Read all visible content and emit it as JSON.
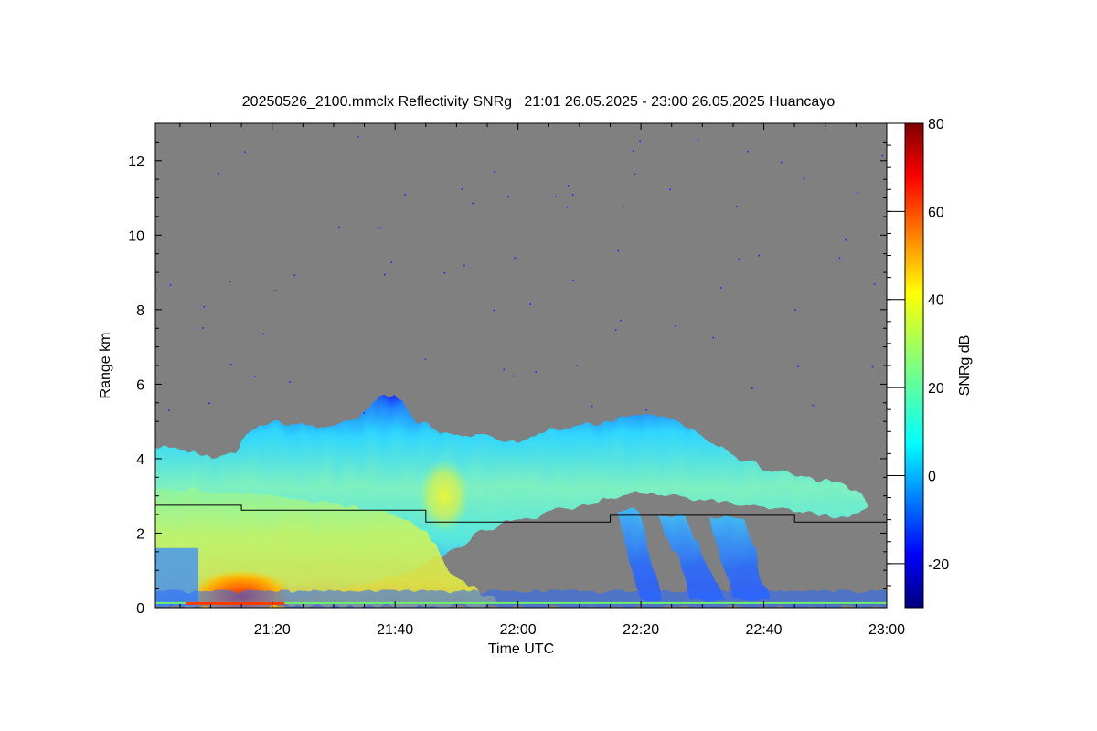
{
  "chart_data": {
    "type": "heatmap",
    "title": "20250526_2100.mmclx Reflectivity SNRg   21:01 26.05.2025 - 23:00 26.05.2025 Huancayo",
    "xlabel": "Time UTC",
    "ylabel": "Range km",
    "xlim_minutes_utc": [
      1261,
      1380
    ],
    "ylim": [
      0,
      13
    ],
    "x_ticks": [
      {
        "value": 1280,
        "label": "21:20"
      },
      {
        "value": 1300,
        "label": "21:40"
      },
      {
        "value": 1320,
        "label": "22:00"
      },
      {
        "value": 1340,
        "label": "22:20"
      },
      {
        "value": 1360,
        "label": "22:40"
      },
      {
        "value": 1380,
        "label": "23:00"
      }
    ],
    "y_ticks": [
      {
        "value": 0,
        "label": "0"
      },
      {
        "value": 2,
        "label": "2"
      },
      {
        "value": 4,
        "label": "4"
      },
      {
        "value": 6,
        "label": "6"
      },
      {
        "value": 8,
        "label": "8"
      },
      {
        "value": 10,
        "label": "10"
      },
      {
        "value": 12,
        "label": "12"
      }
    ],
    "colorbar": {
      "label": "SNRg dB",
      "range": [
        -30,
        80
      ],
      "colormap": "jet",
      "ticks": [
        {
          "value": -20,
          "label": "-20"
        },
        {
          "value": 0,
          "label": "0"
        },
        {
          "value": 20,
          "label": "20"
        },
        {
          "value": 40,
          "label": "40"
        },
        {
          "value": 60,
          "label": "60"
        },
        {
          "value": 80,
          "label": "80"
        }
      ]
    },
    "background_color": "#808080",
    "cloud_layer": {
      "top_km": [
        [
          1261,
          4.3
        ],
        [
          1267,
          4.2
        ],
        [
          1270,
          4.0
        ],
        [
          1274,
          4.2
        ],
        [
          1276,
          4.7
        ],
        [
          1279,
          4.9
        ],
        [
          1284,
          5.0
        ],
        [
          1288,
          4.9
        ],
        [
          1294,
          5.1
        ],
        [
          1297,
          5.6
        ],
        [
          1300,
          5.8
        ],
        [
          1302,
          5.3
        ],
        [
          1306,
          4.8
        ],
        [
          1310,
          4.6
        ],
        [
          1315,
          4.6
        ],
        [
          1320,
          4.5
        ],
        [
          1325,
          4.7
        ],
        [
          1330,
          4.9
        ],
        [
          1334,
          5.0
        ],
        [
          1337,
          5.1
        ],
        [
          1340,
          5.2
        ],
        [
          1344,
          5.1
        ],
        [
          1348,
          4.8
        ],
        [
          1352,
          4.4
        ],
        [
          1356,
          4.0
        ],
        [
          1360,
          3.7
        ],
        [
          1365,
          3.5
        ],
        [
          1370,
          3.4
        ],
        [
          1374,
          3.3
        ],
        [
          1376,
          3.0
        ],
        [
          1377,
          2.7
        ]
      ],
      "base_km": [
        [
          1261,
          0.1
        ],
        [
          1280,
          0.1
        ],
        [
          1300,
          0.8
        ],
        [
          1310,
          1.6
        ],
        [
          1314,
          2.1
        ],
        [
          1318,
          2.3
        ],
        [
          1322,
          2.4
        ],
        [
          1326,
          2.6
        ],
        [
          1330,
          2.7
        ],
        [
          1333,
          2.8
        ],
        [
          1336,
          3.0
        ],
        [
          1340,
          3.1
        ],
        [
          1345,
          3.0
        ],
        [
          1350,
          2.9
        ],
        [
          1355,
          2.8
        ],
        [
          1360,
          2.7
        ],
        [
          1366,
          2.6
        ],
        [
          1371,
          2.5
        ],
        [
          1375,
          2.5
        ],
        [
          1377,
          2.7
        ]
      ]
    },
    "precipitation_shafts_km": [
      {
        "x_top": 1338,
        "x_bottom": 1341,
        "top": 2.6,
        "bottom": 0.2
      },
      {
        "x_top": 1345,
        "x_bottom": 1350,
        "top": 2.5,
        "bottom": 0.2
      },
      {
        "x_top": 1354,
        "x_bottom": 1357,
        "top": 2.4,
        "bottom": 0.2
      }
    ],
    "core_high_snr": {
      "x_range": [
        1268,
        1282
      ],
      "y_range": [
        0,
        1.2
      ],
      "snr_db": 55
    },
    "black_line": {
      "steps": [
        {
          "x_start": 1261,
          "x_end": 1275,
          "y": 2.75
        },
        {
          "x_start": 1275,
          "x_end": 1305,
          "y": 2.62
        },
        {
          "x_start": 1305,
          "x_end": 1335,
          "y": 2.3
        },
        {
          "x_start": 1335,
          "x_end": 1365,
          "y": 2.48
        },
        {
          "x_start": 1365,
          "x_end": 1380,
          "y": 2.3
        }
      ]
    }
  }
}
